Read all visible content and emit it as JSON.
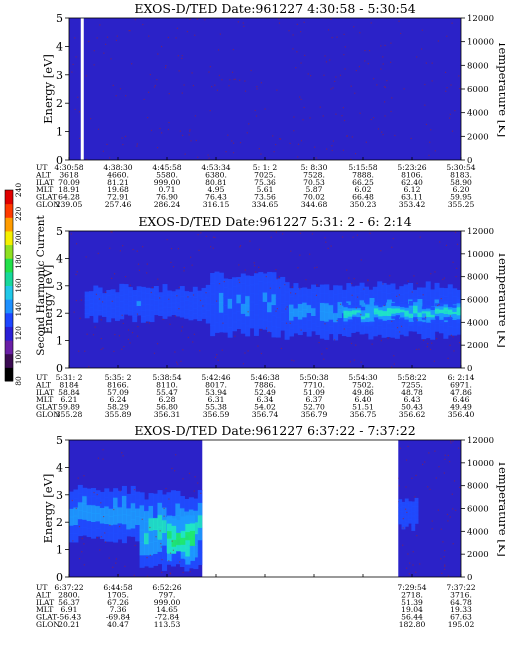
{
  "chart_data": [
    {
      "type": "heatmap",
      "title": "EXOS-D/TED   Date:961227  4:30:58 - 5:30:54",
      "ylabel": "Energy [eV]",
      "y2label": "Temperature [K]",
      "ylim": [
        0,
        5
      ],
      "y2lim": [
        0,
        12000
      ],
      "yticks": [
        "0",
        "1",
        "2",
        "3",
        "4",
        "5"
      ],
      "y2ticks": [
        "0",
        "2000",
        "4000",
        "6000",
        "8000",
        "10000",
        "12000"
      ],
      "x_ticks": [
        "4:30:58",
        "4:38:30",
        "4:45:58",
        "4:53:34",
        "5: 1: 2",
        "5: 8:30",
        "5:15:58",
        "5:23:26",
        "5:30:54"
      ],
      "rows": [
        {
          "label": "UT",
          "values": []
        },
        {
          "label": "ALT",
          "values": [
            "3618",
            "4660.",
            "5580.",
            "6380.",
            "7025.",
            "7528.",
            "7888.",
            "8106.",
            "8183."
          ]
        },
        {
          "label": "ILAT",
          "values": [
            "70.09",
            "81.21",
            "999.00",
            "80.81",
            "75.36",
            "70.53",
            "66.25",
            "62.40",
            "58.90"
          ]
        },
        {
          "label": "MLT",
          "values": [
            "18.91",
            "19.68",
            "0.71",
            "4.95",
            "5.61",
            "5.87",
            "6.02",
            "6.12",
            "6.20"
          ]
        },
        {
          "label": "GLAT",
          "values": [
            "64.28",
            "72.91",
            "76.90",
            "76.43",
            "73.56",
            "70.02",
            "66.48",
            "63.11",
            "59.95"
          ]
        },
        {
          "label": "GLON",
          "values": [
            "239.05",
            "257.46",
            "286.24",
            "316.15",
            "334.65",
            "344.68",
            "350.23",
            "353.42",
            "355.25"
          ]
        }
      ],
      "features": {
        "gap_fraction": 0.03,
        "bands": []
      }
    },
    {
      "type": "heatmap",
      "title": "EXOS-D/TED   Date:961227  5:31: 2 - 6: 2:14",
      "ylabel": "Energy [eV]",
      "y2label": "Temperature [K]",
      "ylim": [
        0,
        5
      ],
      "y2lim": [
        0,
        12000
      ],
      "yticks": [
        "0",
        "1",
        "2",
        "3",
        "4",
        "5"
      ],
      "y2ticks": [
        "0",
        "2000",
        "4000",
        "6000",
        "8000",
        "10000",
        "12000"
      ],
      "x_ticks": [
        "5:31: 2",
        "5:35: 2",
        "5:38:54",
        "5:42:46",
        "5:46:38",
        "5:50:38",
        "5:54:30",
        "5:58:22",
        "6: 2:14"
      ],
      "rows": [
        {
          "label": "UT",
          "values": []
        },
        {
          "label": "ALT",
          "values": [
            "8184",
            "8166.",
            "8110.",
            "8017.",
            "7886.",
            "7710.",
            "7502.",
            "7255.",
            "6971."
          ]
        },
        {
          "label": "ILAT",
          "values": [
            "58.84",
            "57.09",
            "55.47",
            "53.94",
            "52.49",
            "51.09",
            "49.86",
            "48.78",
            "47.86"
          ]
        },
        {
          "label": "MLT",
          "values": [
            "6.21",
            "6.24",
            "6.28",
            "6.31",
            "6.34",
            "6.37",
            "6.40",
            "6.43",
            "6.46"
          ]
        },
        {
          "label": "GLAT",
          "values": [
            "59.89",
            "58.29",
            "56.80",
            "55.38",
            "54.02",
            "52.70",
            "51.51",
            "50.43",
            "49.49"
          ]
        },
        {
          "label": "GLON",
          "values": [
            "355.28",
            "355.89",
            "356.31",
            "356.59",
            "356.74",
            "356.79",
            "356.75",
            "356.62",
            "356.40"
          ]
        }
      ],
      "features": {
        "bands": [
          {
            "x0": 0.04,
            "x1": 0.36,
            "y0": 1.8,
            "y1": 2.9,
            "intensity": 0.55
          },
          {
            "x0": 0.36,
            "x1": 0.55,
            "y0": 1.3,
            "y1": 3.4,
            "intensity": 0.6
          },
          {
            "x0": 0.55,
            "x1": 1.0,
            "y0": 1.2,
            "y1": 3.0,
            "intensity": 0.65
          },
          {
            "x0": 0.7,
            "x1": 1.0,
            "y0": 1.7,
            "y1": 2.4,
            "intensity": 0.85
          }
        ]
      }
    },
    {
      "type": "heatmap",
      "title": "EXOS-D/TED   Date:961227  6:37:22 - 7:37:22",
      "ylabel": "Energy [eV]",
      "y2label": "Temperature [K]",
      "ylim": [
        0,
        5
      ],
      "y2lim": [
        0,
        12000
      ],
      "yticks": [
        "0",
        "1",
        "2",
        "3",
        "4",
        "5"
      ],
      "y2ticks": [
        "0",
        "2000",
        "4000",
        "6000",
        "8000",
        "10000",
        "12000"
      ],
      "x_ticks": [
        "6:37:22",
        "6:44:58",
        "6:52:26",
        "",
        "",
        "",
        "",
        "7:29:54",
        "7:37:22"
      ],
      "rows": [
        {
          "label": "UT",
          "values": []
        },
        {
          "label": "ALT",
          "values": [
            "2800.",
            "1705.",
            "797.",
            "",
            "",
            "",
            "",
            "2718.",
            "3716."
          ]
        },
        {
          "label": "ILAT",
          "values": [
            "56.37",
            "67.26",
            "999.00",
            "",
            "",
            "",
            "",
            "51.39",
            "64.78"
          ]
        },
        {
          "label": "MLT",
          "values": [
            "6.91",
            "7.36",
            "14.65",
            "",
            "",
            "",
            "",
            "19.04",
            "19.33"
          ]
        },
        {
          "label": "GLAT",
          "values": [
            "-56.43",
            "-69.84",
            "-72.84",
            "",
            "",
            "",
            "",
            "56.44",
            "67.63"
          ]
        },
        {
          "label": "GLON",
          "values": [
            "20.21",
            "40.47",
            "113.53",
            "",
            "",
            "",
            "",
            "182.80",
            "195.02"
          ]
        }
      ],
      "features": {
        "data_ranges": [
          [
            0,
            0.34
          ],
          [
            0.84,
            1.0
          ]
        ],
        "bands": [
          {
            "x0": 0.0,
            "x1": 0.18,
            "y0": 1.4,
            "y1": 3.2,
            "intensity": 0.7
          },
          {
            "x0": 0.18,
            "x1": 0.34,
            "y0": 0.4,
            "y1": 3.0,
            "intensity": 0.8
          },
          {
            "x0": 0.25,
            "x1": 0.32,
            "y0": 0.6,
            "y1": 2.2,
            "intensity": 1.0
          },
          {
            "x0": 0.84,
            "x1": 0.89,
            "y0": 1.8,
            "y1": 2.9,
            "intensity": 0.55
          }
        ]
      }
    }
  ],
  "colorbar": {
    "label": "Second Harmonic Current",
    "ticks": [
      "80",
      "100",
      "120",
      "140",
      "160",
      "180",
      "200",
      "220",
      "240"
    ],
    "stops": [
      "#000000",
      "#3b0b52",
      "#6a1fa6",
      "#2a1fd6",
      "#1e46ff",
      "#1e90ff",
      "#21c8e8",
      "#17d89b",
      "#22e04a",
      "#8fe020",
      "#f5f000",
      "#ff9c00",
      "#ff3a00",
      "#e00000"
    ]
  },
  "colors": {
    "background_field": "#2b22c8",
    "band_low": "#1f4dff",
    "band_mid": "#1d9bff",
    "band_high": "#20e6c6",
    "band_peak": "#1fe86a",
    "speckle": "#a0232e"
  }
}
